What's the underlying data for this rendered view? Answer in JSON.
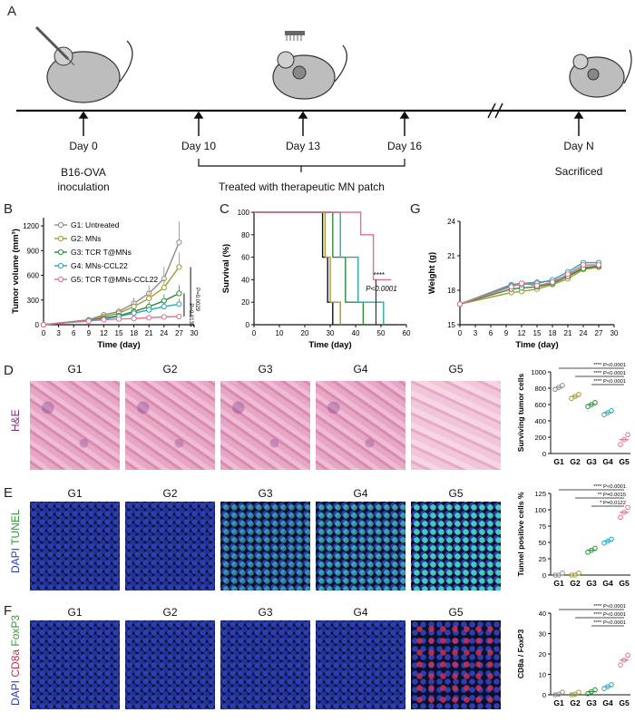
{
  "panels": {
    "A": "A",
    "B": "B",
    "C": "C",
    "D": "D",
    "E": "E",
    "F": "F",
    "G": "G"
  },
  "timeline": {
    "days": [
      "Day 0",
      "Day 10",
      "Day 13",
      "Day 16",
      "Day N"
    ],
    "inoculation": "B16-OVA\ninoculation",
    "treated": "Treated with therapeutic MN patch",
    "sacrificed": "Sacrificed"
  },
  "groups": {
    "G1": "G1: Untreated",
    "G2": "G2: MNs",
    "G3": "G3: TCR T@MNs",
    "G4": "G4: MNs-CCL22",
    "G5": "G5: TCR T@MNs-CCL22"
  },
  "colors": {
    "G1": "#8c8c8c",
    "G2": "#a39a2a",
    "G3": "#2e8b3a",
    "G4": "#2aa6b0",
    "G5": "#e0708f"
  },
  "col_titles": [
    "G1",
    "G2",
    "G3",
    "G4",
    "G5"
  ],
  "stain_labels": {
    "D": [
      "H&E"
    ],
    "E": [
      "DAPI",
      "TUNEL"
    ],
    "F": [
      "DAPI",
      "CD8a",
      "FoxP3"
    ]
  },
  "chart_data": [
    {
      "id": "B",
      "type": "line",
      "xlabel": "Time (day)",
      "ylabel": "Tumor volume (mm³)",
      "xlim": [
        0,
        30
      ],
      "ylim": [
        0,
        1300
      ],
      "xticks": [
        0,
        3,
        6,
        9,
        12,
        15,
        18,
        21,
        24,
        27,
        30
      ],
      "yticks": [
        0,
        300,
        600,
        900,
        1200
      ],
      "annotations": [
        "P=0.0029",
        "P=0.0135"
      ],
      "x": [
        0,
        9,
        12,
        15,
        18,
        21,
        24,
        27
      ],
      "series": [
        {
          "name": "G1: Untreated",
          "values": [
            0,
            60,
            120,
            160,
            260,
            380,
            560,
            1000
          ]
        },
        {
          "name": "G2: MNs",
          "values": [
            0,
            55,
            100,
            140,
            220,
            320,
            450,
            700
          ]
        },
        {
          "name": "G3: TCR T@MNs",
          "values": [
            0,
            50,
            80,
            110,
            160,
            220,
            290,
            380
          ]
        },
        {
          "name": "G4: MNs-CCL22",
          "values": [
            0,
            50,
            70,
            100,
            140,
            180,
            220,
            250
          ]
        },
        {
          "name": "G5: TCR T@MNs-CCL22",
          "values": [
            0,
            45,
            60,
            70,
            75,
            85,
            95,
            100
          ]
        }
      ]
    },
    {
      "id": "C",
      "type": "line",
      "xlabel": "Time (day)",
      "ylabel": "Survival (%)",
      "xlim": [
        0,
        60
      ],
      "ylim": [
        0,
        100
      ],
      "xticks": [
        0,
        10,
        20,
        30,
        40,
        50,
        60
      ],
      "yticks": [
        0,
        20,
        40,
        60,
        80,
        100
      ],
      "annotations": [
        "****",
        "P<0.0001"
      ],
      "series": [
        {
          "name": "G1",
          "points": [
            [
              0,
              100
            ],
            [
              27,
              100
            ],
            [
              27,
              60
            ],
            [
              29,
              60
            ],
            [
              29,
              20
            ],
            [
              31,
              20
            ],
            [
              31,
              0
            ]
          ]
        },
        {
          "name": "G2",
          "points": [
            [
              0,
              100
            ],
            [
              28,
              100
            ],
            [
              28,
              60
            ],
            [
              30,
              60
            ],
            [
              30,
              20
            ],
            [
              34,
              20
            ],
            [
              34,
              0
            ]
          ]
        },
        {
          "name": "G3",
          "points": [
            [
              0,
              100
            ],
            [
              31,
              100
            ],
            [
              31,
              60
            ],
            [
              36,
              60
            ],
            [
              36,
              20
            ],
            [
              43,
              20
            ],
            [
              43,
              0
            ]
          ]
        },
        {
          "name": "G4",
          "points": [
            [
              0,
              100
            ],
            [
              34,
              100
            ],
            [
              34,
              60
            ],
            [
              41,
              60
            ],
            [
              41,
              20
            ],
            [
              51,
              20
            ],
            [
              51,
              0
            ]
          ]
        },
        {
          "name": "G5",
          "points": [
            [
              0,
              100
            ],
            [
              42,
              100
            ],
            [
              42,
              80
            ],
            [
              47,
              80
            ],
            [
              47,
              40
            ],
            [
              54,
              40
            ]
          ]
        }
      ]
    },
    {
      "id": "G",
      "type": "line",
      "xlabel": "Time (day)",
      "ylabel": "Weight (g)",
      "xlim": [
        0,
        30
      ],
      "ylim": [
        15,
        24
      ],
      "xticks": [
        0,
        3,
        6,
        9,
        12,
        15,
        18,
        21,
        24,
        27,
        30
      ],
      "yticks": [
        15,
        18,
        21,
        24
      ],
      "x": [
        0,
        10,
        12,
        15,
        18,
        21,
        24,
        27
      ],
      "series": [
        {
          "name": "G1",
          "values": [
            16.8,
            18.5,
            18.6,
            18.7,
            18.8,
            19.3,
            20.0,
            20.1
          ]
        },
        {
          "name": "G2",
          "values": [
            16.8,
            17.8,
            17.9,
            18.1,
            18.5,
            19.0,
            19.8,
            20.0
          ]
        },
        {
          "name": "G3",
          "values": [
            16.8,
            18.1,
            18.2,
            18.3,
            18.6,
            19.2,
            19.9,
            20.1
          ]
        },
        {
          "name": "G4",
          "values": [
            16.8,
            18.4,
            18.5,
            18.6,
            18.9,
            19.6,
            20.4,
            20.4
          ]
        },
        {
          "name": "G5",
          "values": [
            16.8,
            18.3,
            18.6,
            18.4,
            18.7,
            19.4,
            20.2,
            20.2
          ]
        }
      ]
    },
    {
      "id": "D",
      "type": "scatter",
      "ylabel": "Surviving tumor cells",
      "categories": [
        "G1",
        "G2",
        "G3",
        "G4",
        "G5"
      ],
      "ylim": [
        0,
        1000
      ],
      "yticks": [
        0,
        200,
        400,
        600,
        800,
        1000
      ],
      "means": [
        810,
        700,
        600,
        500,
        170
      ],
      "annotations": [
        "**** P<0.0001",
        "**** P<0.0001",
        "**** P<0.0001"
      ]
    },
    {
      "id": "E",
      "type": "scatter",
      "ylabel": "Tunnel positive cells %",
      "categories": [
        "G1",
        "G2",
        "G3",
        "G4",
        "G5"
      ],
      "ylim": [
        0,
        125
      ],
      "yticks": [
        0,
        25,
        50,
        75,
        100,
        125
      ],
      "means": [
        0,
        0,
        38,
        52,
        96
      ],
      "annotations": [
        "**** P<0.0001",
        "** P=0.0015",
        "* P=0.0122"
      ]
    },
    {
      "id": "F",
      "type": "scatter",
      "ylabel": "CD8a / FoxP3",
      "categories": [
        "G1",
        "G2",
        "G3",
        "G4",
        "G5"
      ],
      "ylim": [
        0,
        40
      ],
      "yticks": [
        0,
        10,
        20,
        30,
        40
      ],
      "means": [
        0.3,
        0.3,
        1.5,
        4,
        17
      ],
      "annotations": [
        "**** P<0.0001",
        "**** P<0.0001",
        "**** P<0.0001"
      ]
    }
  ]
}
